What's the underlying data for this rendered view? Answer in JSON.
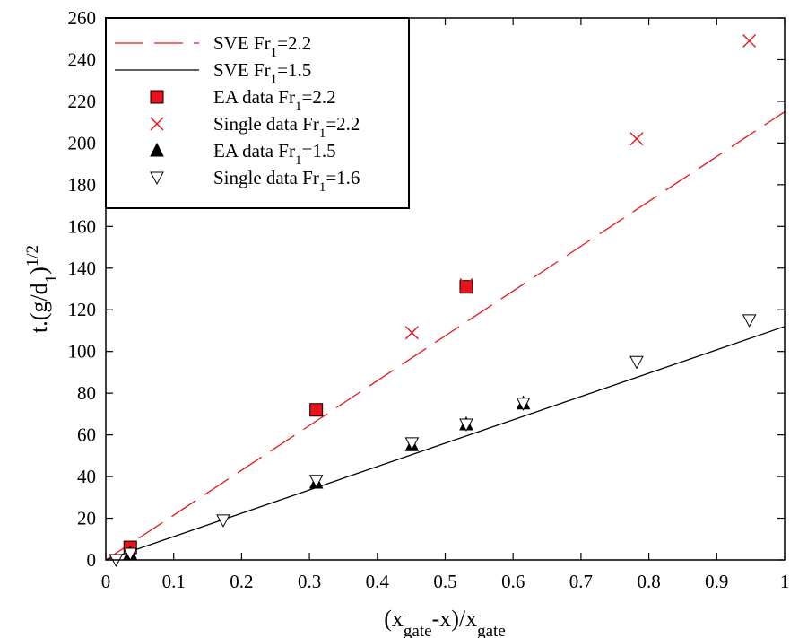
{
  "chart_data": {
    "type": "scatter",
    "title": "",
    "xlabel": {
      "parts": [
        {
          "t": "(x"
        },
        {
          "t": "gate",
          "sub": true
        },
        {
          "t": "-x)/x"
        },
        {
          "t": "gate",
          "sub": true
        }
      ]
    },
    "ylabel": {
      "parts": [
        {
          "t": "t.(g/d"
        },
        {
          "t": "1",
          "sub": true
        },
        {
          "t": ")"
        },
        {
          "t": "1/2",
          "sup": true
        }
      ]
    },
    "xlim": [
      0,
      1
    ],
    "ylim": [
      0,
      260
    ],
    "x_ticks": [
      0,
      0.1,
      0.2,
      0.3,
      0.4,
      0.5,
      0.6,
      0.7,
      0.8,
      0.9,
      1
    ],
    "x_tick_labels": [
      "0",
      "0.1",
      "0.2",
      "0.3",
      "0.4",
      "0.5",
      "0.6",
      "0.7",
      "0.8",
      "0.9",
      "1"
    ],
    "y_ticks": [
      0,
      20,
      40,
      60,
      80,
      100,
      120,
      140,
      160,
      180,
      200,
      220,
      240,
      260
    ],
    "y_tick_labels": [
      "0",
      "20",
      "40",
      "60",
      "80",
      "100",
      "120",
      "140",
      "160",
      "180",
      "200",
      "220",
      "240",
      "260"
    ],
    "grid": false,
    "legend_position": "top-left",
    "series": [
      {
        "name": "SVE Fr1=2.2",
        "label_parts": [
          {
            "t": "SVE Fr"
          },
          {
            "t": "1",
            "sub": true
          },
          {
            "t": "=2.2"
          }
        ],
        "kind": "line",
        "style": "dashed",
        "color": "#e8141c",
        "x": [
          0,
          1
        ],
        "y": [
          0,
          215
        ]
      },
      {
        "name": "SVE Fr1=1.5",
        "label_parts": [
          {
            "t": "SVE Fr"
          },
          {
            "t": "1",
            "sub": true
          },
          {
            "t": "=1.5"
          }
        ],
        "kind": "line",
        "style": "solid",
        "color": "#000000",
        "x": [
          0,
          1
        ],
        "y": [
          0,
          112
        ]
      },
      {
        "name": "EA data Fr1=2.2",
        "label_parts": [
          {
            "t": "EA data Fr"
          },
          {
            "t": "1",
            "sub": true
          },
          {
            "t": "=2.2"
          }
        ],
        "kind": "marker",
        "marker": "square",
        "color": "#e8141c",
        "x": [
          0.036,
          0.31,
          0.531
        ],
        "y": [
          6,
          72,
          131
        ]
      },
      {
        "name": "Single data Fr1=2.2",
        "label_parts": [
          {
            "t": "Single data Fr"
          },
          {
            "t": "1",
            "sub": true
          },
          {
            "t": "=2.2"
          }
        ],
        "kind": "marker",
        "marker": "x",
        "color": "#e8141c",
        "x": [
          0.036,
          0.451,
          0.531,
          0.782,
          0.948
        ],
        "y": [
          3,
          109,
          132,
          202,
          249
        ]
      },
      {
        "name": "EA data Fr1=1.5",
        "label_parts": [
          {
            "t": "EA data Fr"
          },
          {
            "t": "1",
            "sub": true
          },
          {
            "t": "=1.5"
          }
        ],
        "kind": "marker",
        "marker": "triangle-up",
        "color": "#000000",
        "x": [
          0.036,
          0.31,
          0.451,
          0.531,
          0.615
        ],
        "y": [
          3,
          37,
          55,
          65,
          75
        ]
      },
      {
        "name": "Single data Fr1=1.6",
        "label_parts": [
          {
            "t": "Single data Fr"
          },
          {
            "t": "1",
            "sub": true
          },
          {
            "t": "=1.6"
          }
        ],
        "kind": "marker",
        "marker": "triangle-down",
        "color": "#000000",
        "x": [
          0.015,
          0.036,
          0.173,
          0.31,
          0.451,
          0.531,
          0.615,
          0.782,
          0.948
        ],
        "y": [
          0,
          3,
          19,
          38,
          56,
          65,
          75,
          95,
          115
        ]
      }
    ]
  }
}
